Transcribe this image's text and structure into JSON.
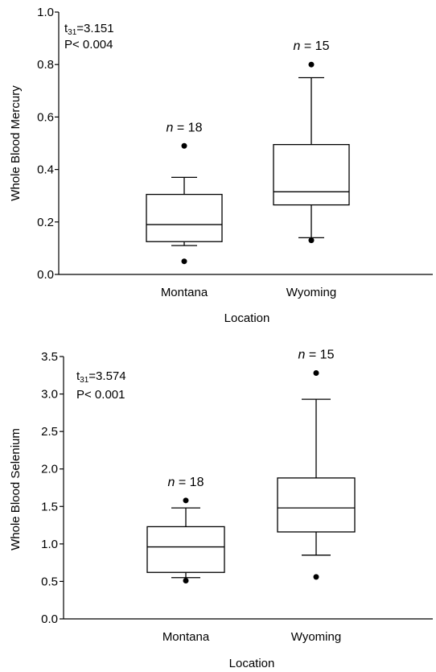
{
  "chart_data": [
    {
      "type": "box",
      "xlabel": "Location",
      "ylabel": "Whole Blood Mercury",
      "ylim": [
        0.0,
        1.0
      ],
      "yticks": [
        "0.0",
        "0.2",
        "0.4",
        "0.6",
        "0.8",
        "1.0"
      ],
      "categories": [
        "Montana",
        "Wyoming"
      ],
      "stats": {
        "line1_base": "t",
        "line1_sub": "31",
        "line1_value": "=3.151",
        "line2": "P< 0.004"
      },
      "boxes": [
        {
          "category": "Montana",
          "n_label": "= 18",
          "whisker_low": 0.11,
          "q1": 0.125,
          "median": 0.19,
          "q3": 0.305,
          "whisker_high": 0.37,
          "outliers": [
            0.05,
            0.49
          ]
        },
        {
          "category": "Wyoming",
          "n_label": "= 15",
          "whisker_low": 0.14,
          "q1": 0.265,
          "median": 0.315,
          "q3": 0.495,
          "whisker_high": 0.75,
          "outliers": [
            0.13,
            0.8
          ]
        }
      ]
    },
    {
      "type": "box",
      "xlabel": "Location",
      "ylabel": "Whole Blood Selenium",
      "ylim": [
        0.0,
        3.5
      ],
      "yticks": [
        "0.0",
        "0.5",
        "1.0",
        "1.5",
        "2.0",
        "2.5",
        "3.0",
        "3.5"
      ],
      "categories": [
        "Montana",
        "Wyoming"
      ],
      "stats": {
        "line1_base": "t",
        "line1_sub": "31",
        "line1_value": "=3.574",
        "line2": "P< 0.001"
      },
      "boxes": [
        {
          "category": "Montana",
          "n_label": "= 18",
          "whisker_low": 0.55,
          "q1": 0.62,
          "median": 0.96,
          "q3": 1.23,
          "whisker_high": 1.48,
          "outliers": [
            0.51,
            1.58
          ]
        },
        {
          "category": "Wyoming",
          "n_label": "= 15",
          "whisker_low": 0.85,
          "q1": 1.16,
          "median": 1.48,
          "q3": 1.88,
          "whisker_high": 2.93,
          "outliers": [
            0.56,
            3.28
          ]
        }
      ]
    }
  ]
}
